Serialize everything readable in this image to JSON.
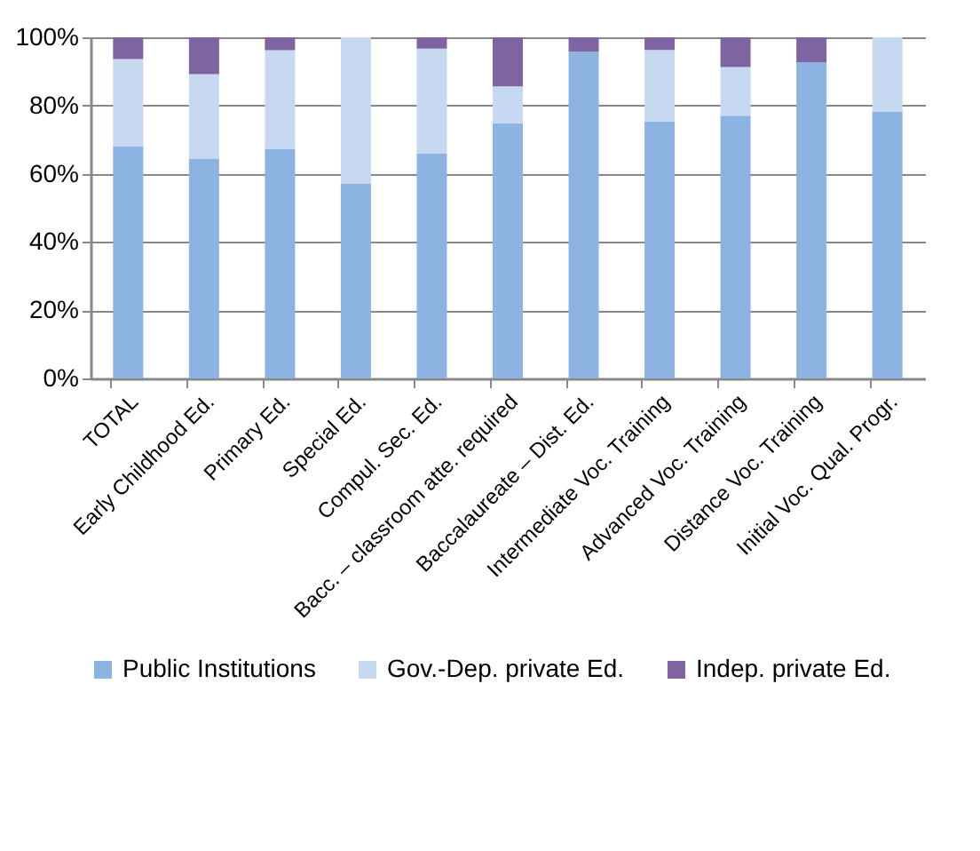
{
  "chart_data": {
    "type": "bar",
    "stacked": true,
    "categories": [
      "TOTAL",
      "Early Childhood Ed.",
      "Primary Ed.",
      "Special Ed.",
      "Compul. Sec. Ed.",
      "Bacc. – classroom atte. required",
      "Baccalaureate – Dist. Ed.",
      "Intermediate Voc. Training",
      "Advanced Voc. Training",
      "Distance Voc. Training",
      "Initial Voc. Qual. Progr."
    ],
    "series": [
      {
        "name": "Public Institutions",
        "color": "#8db3e2",
        "values": [
          68.0,
          64.3,
          67.3,
          57.0,
          65.9,
          74.8,
          95.8,
          75.3,
          77.0,
          92.7,
          78.1
        ]
      },
      {
        "name": "Gov.-Dep. private Ed.",
        "color": "#c6d9f1",
        "values": [
          25.6,
          24.9,
          28.9,
          43.0,
          30.8,
          10.8,
          0,
          21.0,
          14.3,
          0,
          21.9
        ]
      },
      {
        "name": "Indep. private Ed.",
        "color": "#8064a2",
        "values": [
          6.4,
          10.8,
          3.8,
          0,
          3.3,
          14.4,
          4.2,
          3.7,
          8.7,
          7.3,
          0
        ]
      }
    ],
    "ylim": [
      0,
      100
    ],
    "yticks": [
      {
        "value": 0,
        "label": "0%"
      },
      {
        "value": 20,
        "label": "20%"
      },
      {
        "value": 40,
        "label": "40%"
      },
      {
        "value": 60,
        "label": "60%"
      },
      {
        "value": 80,
        "label": "80%"
      },
      {
        "value": 100,
        "label": "100%"
      }
    ],
    "grid": "y",
    "legend": "bottom"
  }
}
